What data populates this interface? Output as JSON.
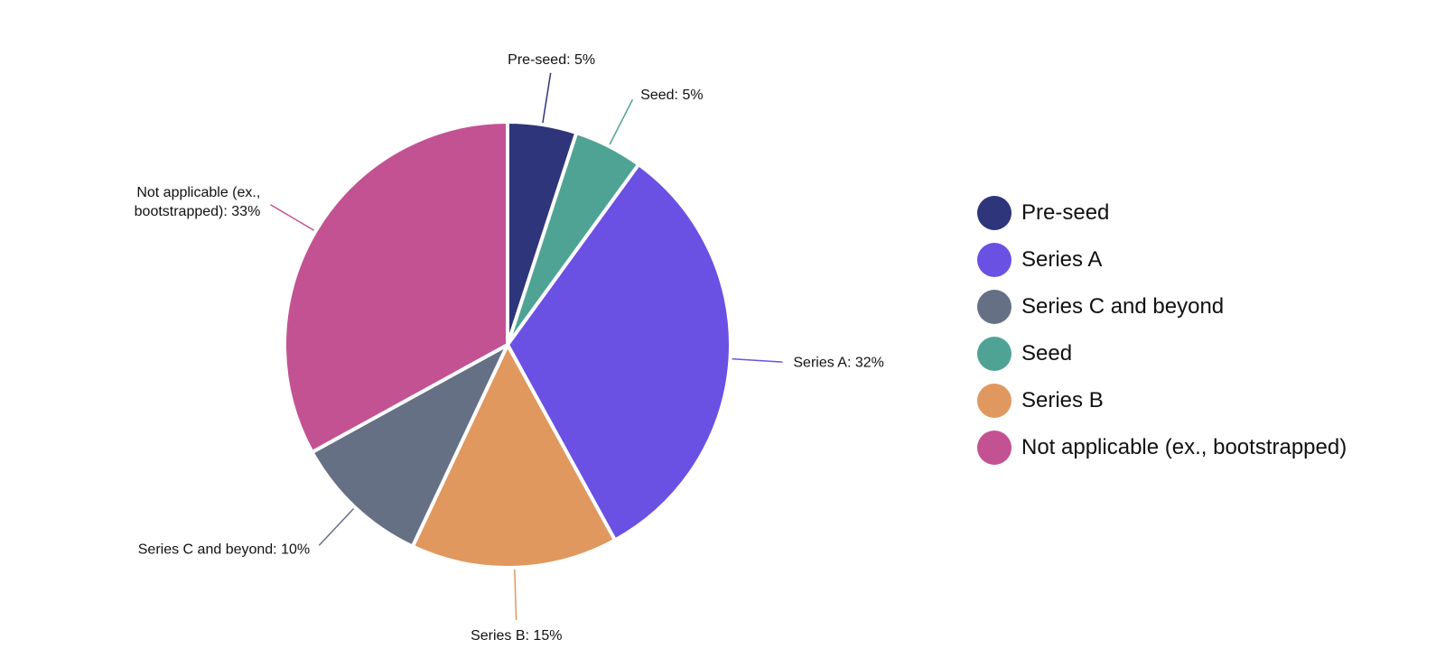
{
  "chart_data": {
    "type": "pie",
    "title": "",
    "slices": [
      {
        "name": "Pre-seed",
        "value": 5,
        "label": "Pre-seed: 5%",
        "color": "#2e357a"
      },
      {
        "name": "Seed",
        "value": 5,
        "label": "Seed: 5%",
        "color": "#4fa394"
      },
      {
        "name": "Series A",
        "value": 32,
        "label": "Series A: 32%",
        "color": "#6a51e3"
      },
      {
        "name": "Series B",
        "value": 15,
        "label": "Series B: 15%",
        "color": "#e0985e"
      },
      {
        "name": "Series C and beyond",
        "value": 10,
        "label": "Series C and beyond: 10%",
        "color": "#667085"
      },
      {
        "name": "Not applicable (ex., bootstrapped)",
        "value": 33,
        "label": "Not applicable (ex., bootstrapped): 33%",
        "label_lines": [
          "Not applicable (ex.,",
          "bootstrapped): 33%"
        ],
        "color": "#c35293"
      }
    ],
    "legend": {
      "position": "right",
      "items": [
        "Pre-seed",
        "Series A",
        "Series C and beyond",
        "Seed",
        "Series B",
        "Not applicable (ex., bootstrapped)"
      ]
    }
  }
}
